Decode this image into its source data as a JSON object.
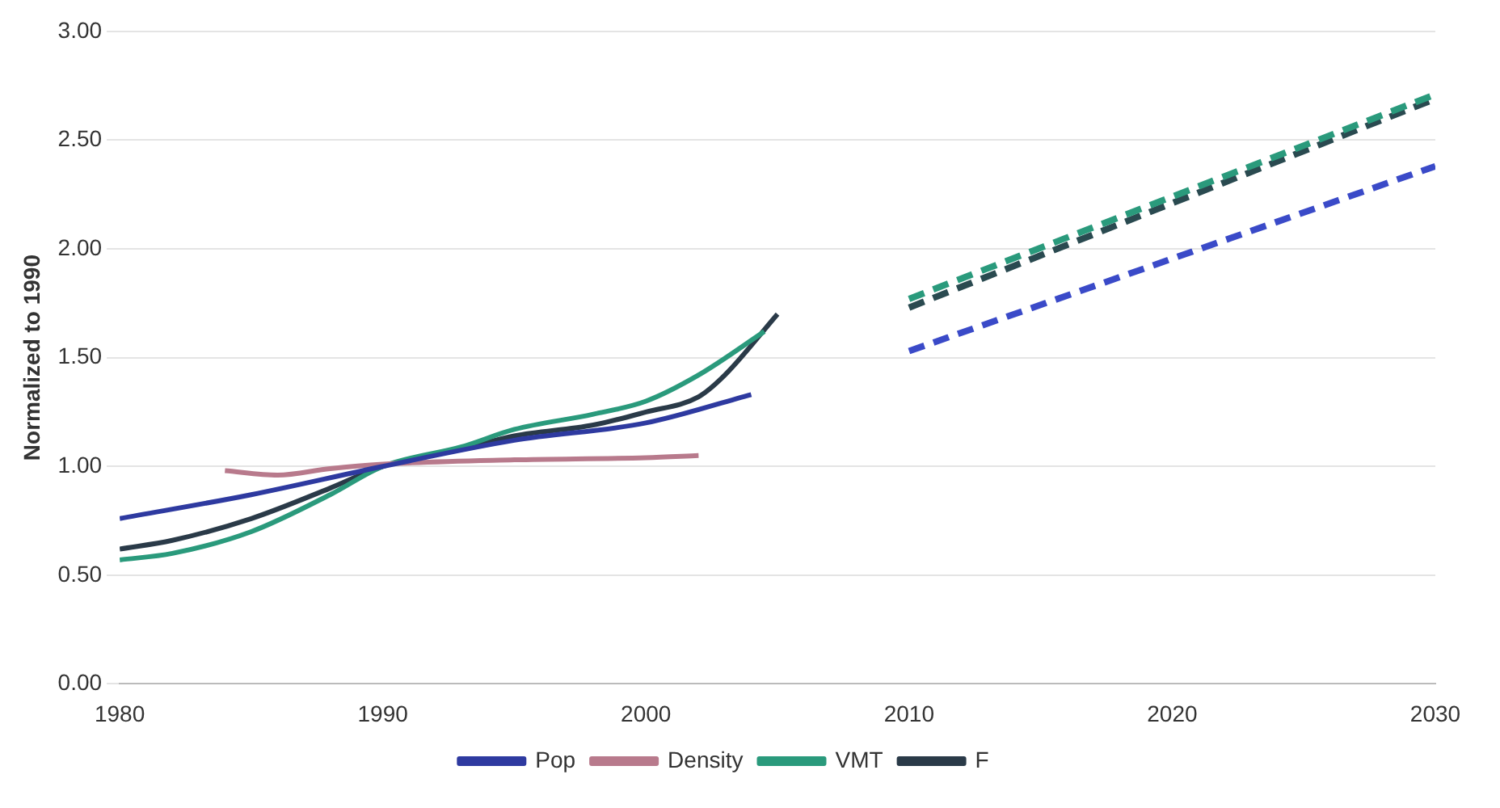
{
  "chart_data": {
    "type": "line",
    "ylabel": "Normalized to 1990",
    "xlim": [
      1980,
      2030
    ],
    "xticks": [
      1980,
      1990,
      2000,
      2010,
      2020,
      2030
    ],
    "ylim": [
      0,
      3
    ],
    "yticks": [
      {
        "value": 0,
        "label": "0.00"
      },
      {
        "value": 0.5,
        "label": "0.50"
      },
      {
        "value": 1,
        "label": "1.00"
      },
      {
        "value": 1.5,
        "label": "1.50"
      },
      {
        "value": 2,
        "label": "2.00"
      },
      {
        "value": 2.5,
        "label": "2.50"
      },
      {
        "value": 3,
        "label": "3.00"
      }
    ],
    "grid": "y",
    "legend": "bottom",
    "marker": "none",
    "series": [
      {
        "name": "Pop",
        "color": "#2e3aa0",
        "line_style": "solid",
        "x": [
          1980,
          1985,
          1990,
          1995,
          2000,
          2004
        ],
        "values": [
          0.76,
          0.87,
          1.0,
          1.12,
          1.2,
          1.33
        ]
      },
      {
        "name": "Density",
        "color": "#b87a8c",
        "line_style": "solid",
        "x": [
          1984,
          1986,
          1988,
          1990,
          1995,
          2000,
          2002
        ],
        "values": [
          0.98,
          0.96,
          0.99,
          1.01,
          1.03,
          1.04,
          1.05
        ]
      },
      {
        "name": "VMT",
        "color": "#2a9a7c",
        "line_style": "solid",
        "x": [
          1980,
          1982,
          1985,
          1988,
          1990,
          1993,
          1995,
          1998,
          2000,
          2002,
          2004.5
        ],
        "values": [
          0.57,
          0.6,
          0.7,
          0.87,
          1.0,
          1.09,
          1.17,
          1.24,
          1.3,
          1.42,
          1.62
        ]
      },
      {
        "name": "F",
        "color": "#2a3a48",
        "line_style": "solid",
        "x": [
          1980,
          1982,
          1985,
          1988,
          1990,
          1993,
          1995,
          1998,
          2000,
          2002,
          2003,
          2005
        ],
        "values": [
          0.62,
          0.66,
          0.76,
          0.9,
          1.0,
          1.08,
          1.14,
          1.19,
          1.25,
          1.32,
          1.42,
          1.7
        ]
      },
      {
        "color": "#3a4ac8",
        "line_style": "dashed",
        "x": [
          2010,
          2030
        ],
        "values": [
          1.53,
          2.38
        ]
      },
      {
        "color": "#2a9a7c",
        "line_style": "dashed",
        "x": [
          2010,
          2030
        ],
        "values": [
          1.77,
          2.71
        ]
      },
      {
        "color": "#2a4a50",
        "line_style": "dashed",
        "x": [
          2010,
          2030
        ],
        "values": [
          1.73,
          2.69
        ]
      }
    ]
  }
}
